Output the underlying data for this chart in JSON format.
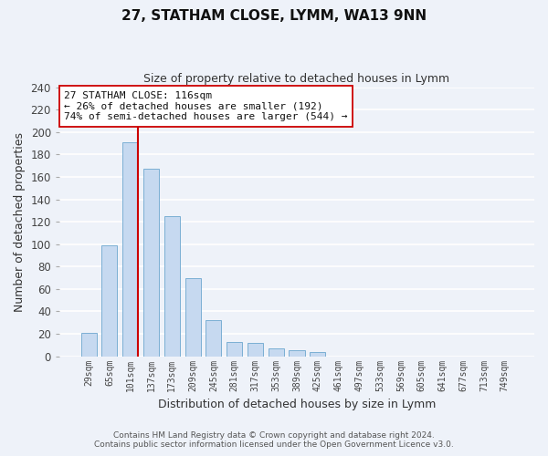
{
  "title": "27, STATHAM CLOSE, LYMM, WA13 9NN",
  "subtitle": "Size of property relative to detached houses in Lymm",
  "bar_labels": [
    "29sqm",
    "65sqm",
    "101sqm",
    "137sqm",
    "173sqm",
    "209sqm",
    "245sqm",
    "281sqm",
    "317sqm",
    "353sqm",
    "389sqm",
    "425sqm",
    "461sqm",
    "497sqm",
    "533sqm",
    "569sqm",
    "605sqm",
    "641sqm",
    "677sqm",
    "713sqm",
    "749sqm"
  ],
  "bar_values": [
    21,
    99,
    191,
    167,
    125,
    70,
    32,
    13,
    12,
    7,
    5,
    4,
    0,
    0,
    0,
    0,
    0,
    0,
    0,
    0,
    0
  ],
  "bar_color": "#c6d9f0",
  "bar_edge_color": "#7bafd4",
  "vline_color": "#cc0000",
  "annotation_title": "27 STATHAM CLOSE: 116sqm",
  "annotation_line1": "← 26% of detached houses are smaller (192)",
  "annotation_line2": "74% of semi-detached houses are larger (544) →",
  "annotation_box_color": "#ffffff",
  "annotation_box_edge": "#cc0000",
  "xlabel": "Distribution of detached houses by size in Lymm",
  "ylabel": "Number of detached properties",
  "ylim": [
    0,
    240
  ],
  "yticks": [
    0,
    20,
    40,
    60,
    80,
    100,
    120,
    140,
    160,
    180,
    200,
    220,
    240
  ],
  "footer1": "Contains HM Land Registry data © Crown copyright and database right 2024.",
  "footer2": "Contains public sector information licensed under the Open Government Licence v3.0.",
  "bg_color": "#eef2f9"
}
